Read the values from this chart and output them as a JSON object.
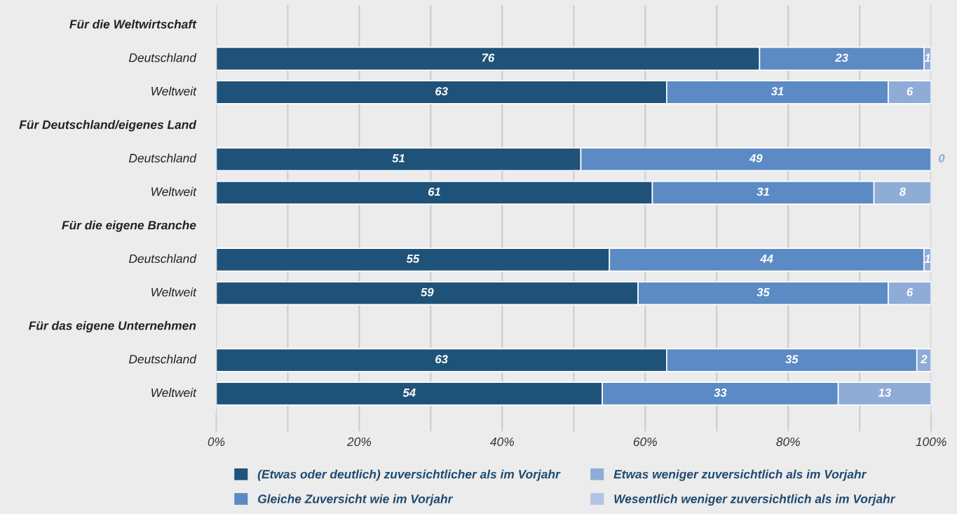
{
  "chart_data": {
    "type": "bar",
    "orientation": "horizontal",
    "stacked": true,
    "data_labels": true,
    "grid": "x",
    "legend": "bottom",
    "categories": [
      "Für die Weltwirtschaft",
      "Deutschland",
      "Weltweit",
      "Für Deutschland/eigenes Land",
      "Deutschland",
      "Weltweit",
      "Für die eigene Branche",
      "Deutschland",
      "Weltweit",
      "Für das eigene Unternehmen",
      "Deutschland",
      "Weltweit"
    ],
    "series": [
      {
        "name": "(Etwas oder deutlich) zuversichtlicher als im Vorjahr",
        "color": "#1f5278",
        "values": [
          null,
          76,
          63,
          null,
          51,
          61,
          null,
          55,
          59,
          null,
          63,
          54
        ]
      },
      {
        "name": "Gleiche Zuversicht wie im Vorjahr",
        "color": "#5b8ac4",
        "values": [
          null,
          23,
          31,
          null,
          49,
          31,
          null,
          44,
          35,
          null,
          35,
          33
        ]
      },
      {
        "name": "Etwas weniger zuversichtlich als im Vorjahr",
        "color": "#8facd7",
        "values": [
          null,
          1,
          6,
          null,
          0,
          8,
          null,
          1,
          6,
          null,
          2,
          13
        ]
      },
      {
        "name": "Wesentlich weniger zuversichtlich als im Vorjahr",
        "color": "#b0c3e4",
        "values": [
          null,
          null,
          null,
          null,
          null,
          null,
          null,
          null,
          null,
          null,
          null,
          null
        ]
      }
    ],
    "xlim": [
      0,
      100
    ],
    "xticks": [
      {
        "value": 0,
        "label": "0%"
      },
      {
        "value": 10,
        "label": null
      },
      {
        "value": 20,
        "label": "20%"
      },
      {
        "value": 30,
        "label": null
      },
      {
        "value": 40,
        "label": "40%"
      },
      {
        "value": 50,
        "label": null
      },
      {
        "value": 60,
        "label": "60%"
      },
      {
        "value": 70,
        "label": null
      },
      {
        "value": 80,
        "label": "80%"
      },
      {
        "value": 90,
        "label": null
      },
      {
        "value": 100,
        "label": "100%"
      }
    ]
  }
}
